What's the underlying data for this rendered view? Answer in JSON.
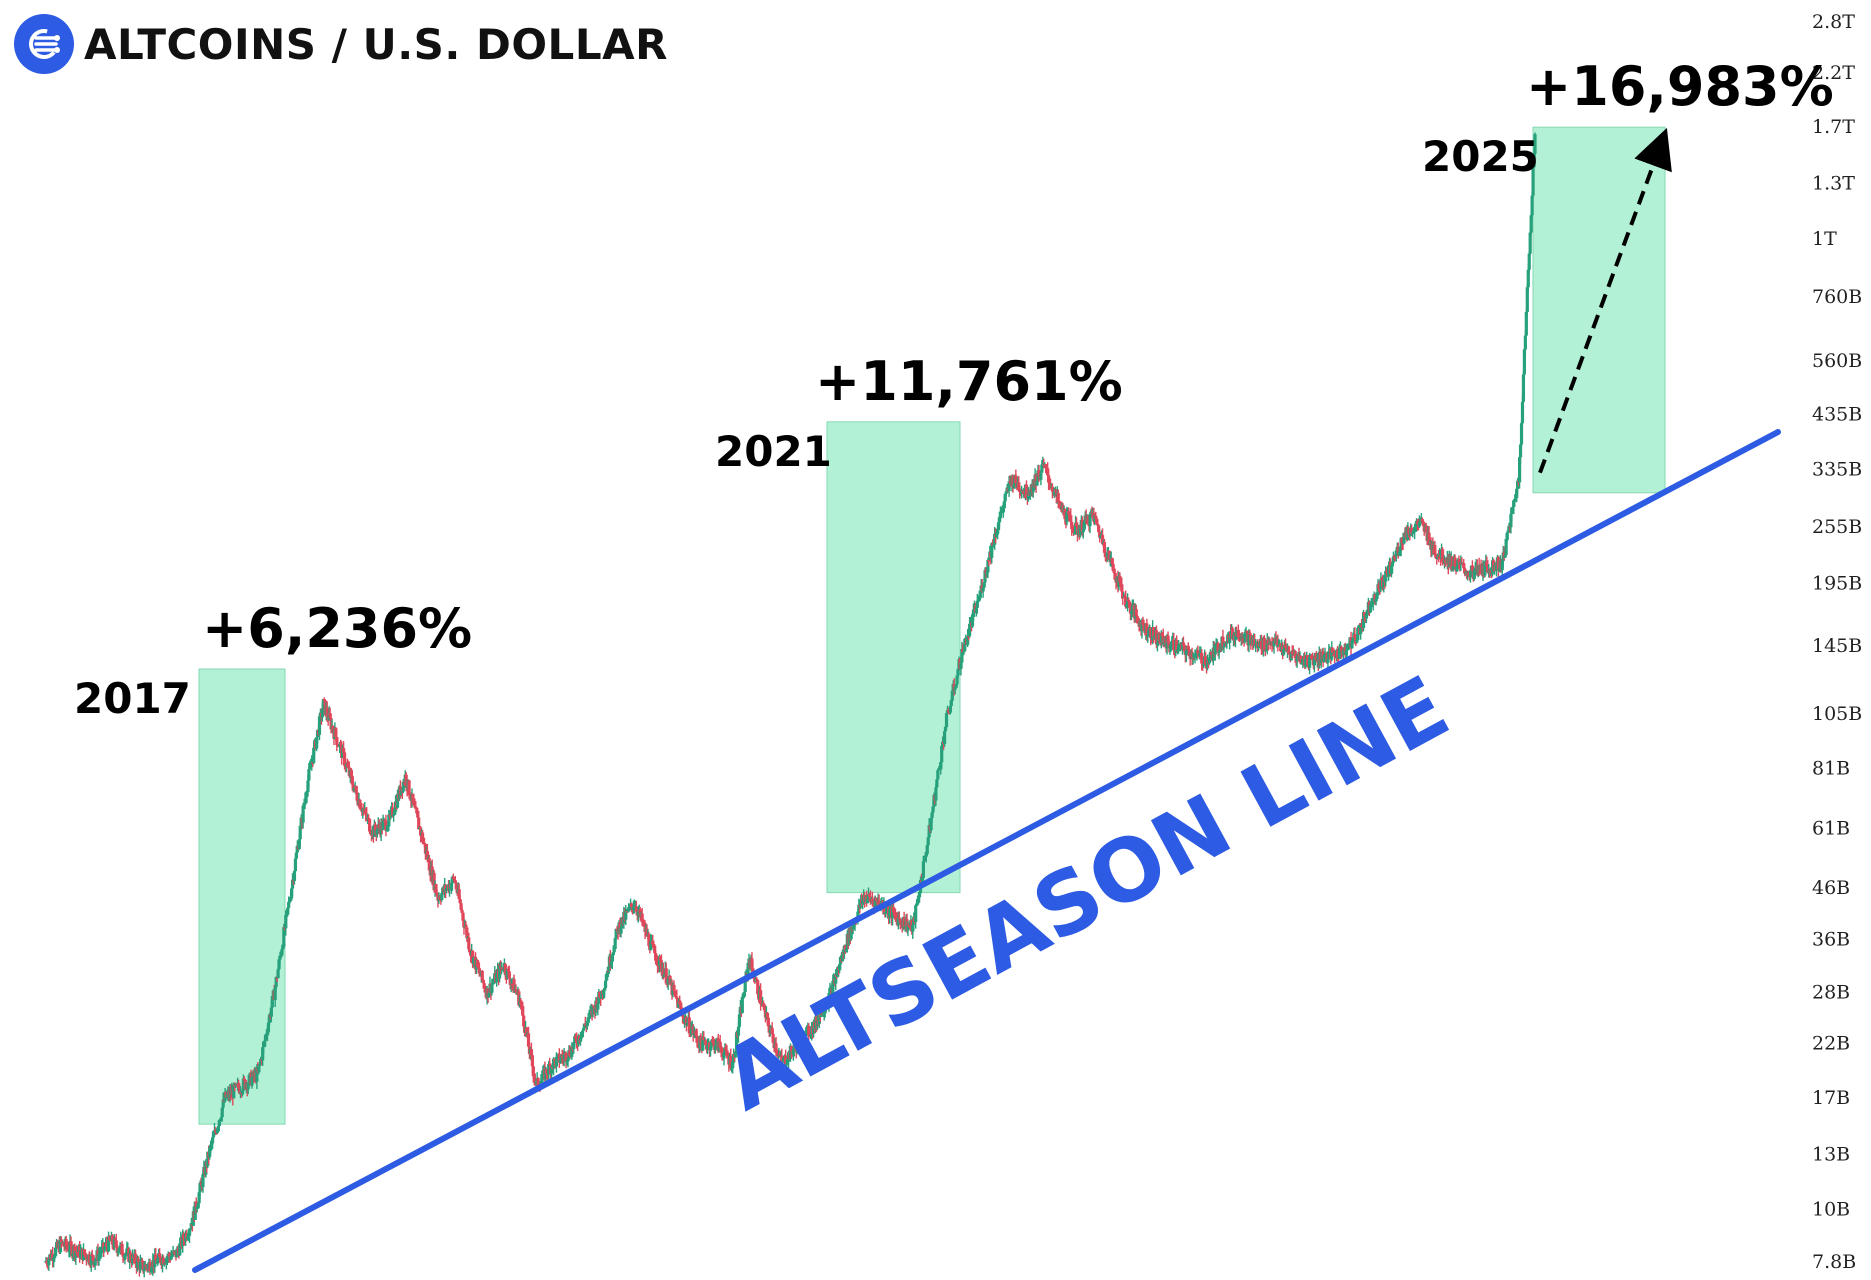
{
  "header": {
    "title": "ALTCOINS / U.S. DOLLAR",
    "logo_icon": "brand-logo-icon",
    "logo_color": "#2d5be3"
  },
  "colors": {
    "up": "#26a17b",
    "down": "#e0475a",
    "zone_fill": "#b3f1d6",
    "zone_stroke": "#86d9b3",
    "trendline": "#2d5be3",
    "annotation": "#000000"
  },
  "chart_data": {
    "type": "line",
    "title": "ALTCOINS / U.S. DOLLAR",
    "scale": "log",
    "y_ticks": [
      "2.8T",
      "2.2T",
      "1.7T",
      "1.3T",
      "1T",
      "760B",
      "560B",
      "435B",
      "335B",
      "255B",
      "195B",
      "145B",
      "105B",
      "81B",
      "61B",
      "46B",
      "36B",
      "28B",
      "22B",
      "17B",
      "13B",
      "10B",
      "7.8B"
    ],
    "grid": false,
    "legend": "none",
    "series": [
      {
        "values_in_billions": [
          7.8,
          8.5,
          8.2,
          7.9,
          8.6,
          8.1,
          7.6,
          7.9,
          8.1,
          9.5,
          13,
          17,
          18,
          19,
          28,
          45,
          75,
          110,
          90,
          72,
          60,
          63,
          78,
          59,
          44,
          48,
          34,
          28,
          32,
          27,
          18,
          20,
          21,
          24,
          28,
          38,
          43,
          35,
          30,
          25,
          22,
          22,
          20,
          33,
          25,
          20,
          22,
          24,
          28,
          36,
          44,
          43,
          40,
          38,
          60,
          100,
          140,
          180,
          245,
          320,
          300,
          340,
          280,
          250,
          270,
          220,
          180,
          160,
          150,
          145,
          140,
          135,
          150,
          155,
          145,
          148,
          140,
          135,
          138,
          140,
          150,
          180,
          205,
          245,
          260,
          225,
          215,
          205,
          210,
          215,
          320,
          1700
        ]
      }
    ],
    "zones": [
      {
        "year": "2017",
        "gain": "+6,236%",
        "low_b": 15,
        "high_b": 130
      },
      {
        "year": "2021",
        "gain": "+11,761%",
        "low_b": 45,
        "high_b": 420
      },
      {
        "year": "2025",
        "gain": "+16,983%",
        "low_b": 300,
        "high_b": 1700
      }
    ],
    "trendline_label": "ALTSEASON LINE"
  }
}
